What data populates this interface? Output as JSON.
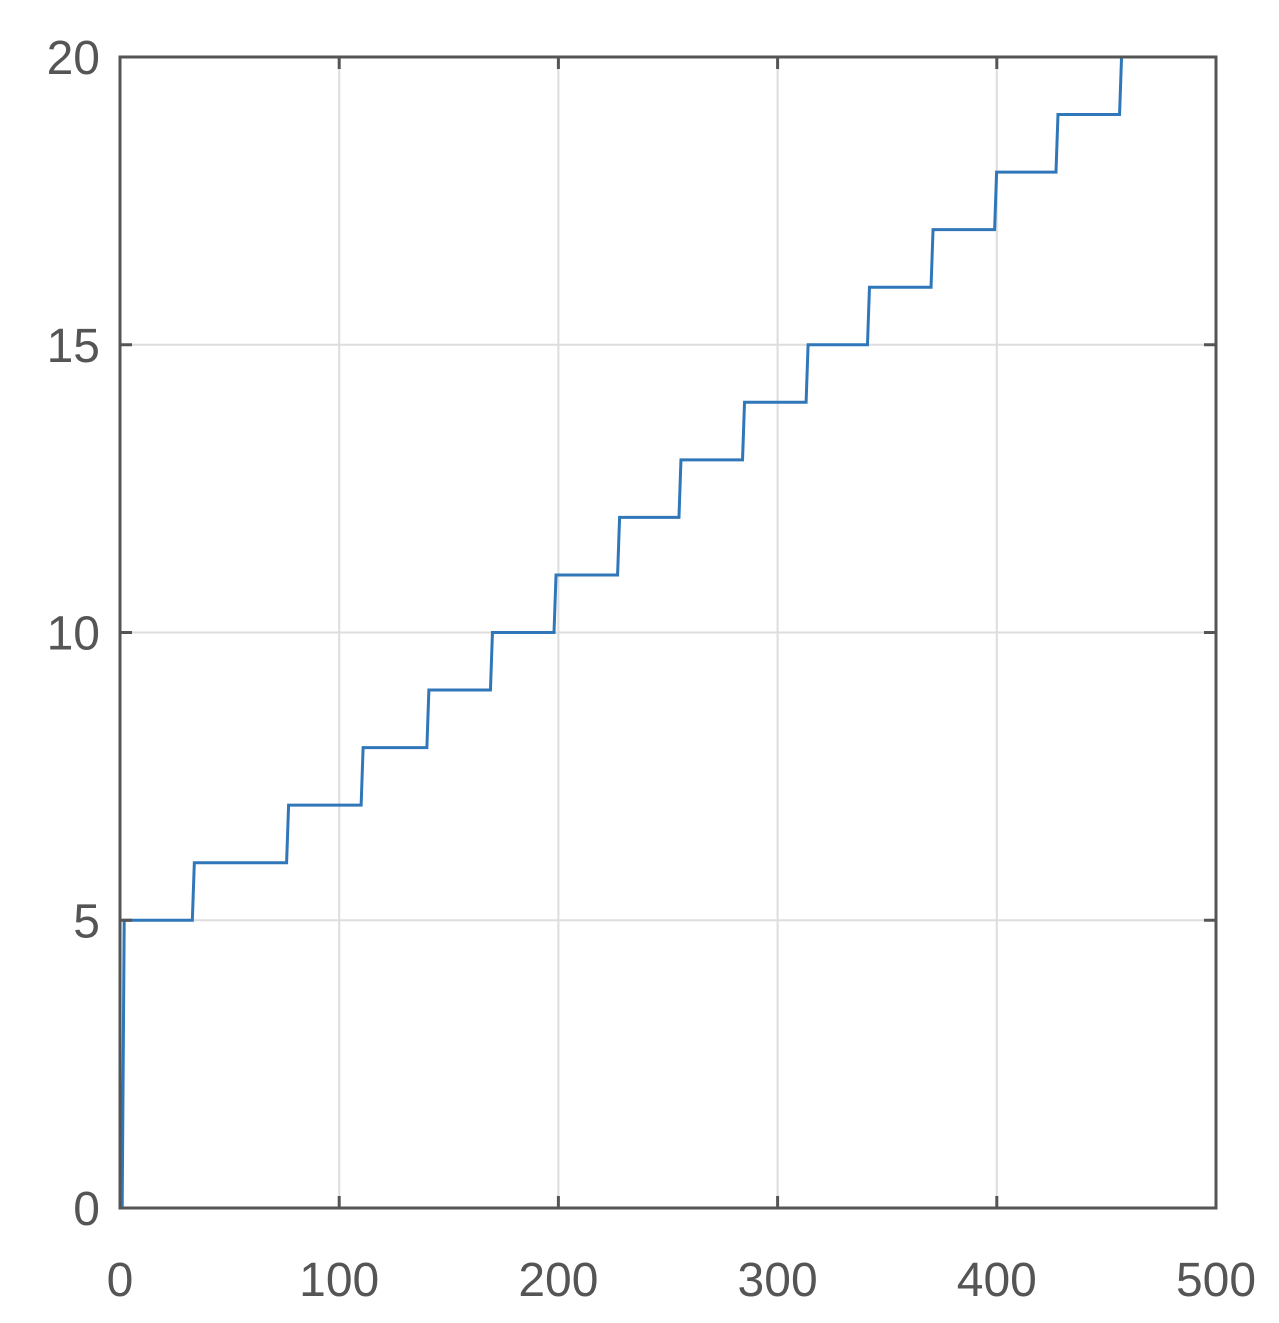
{
  "chart_data": {
    "type": "line",
    "title": "",
    "xlabel": "",
    "ylabel": "",
    "xlim": [
      0,
      500
    ],
    "ylim": [
      0,
      20
    ],
    "x_ticks": [
      0,
      100,
      200,
      300,
      400,
      500
    ],
    "y_ticks": [
      0,
      5,
      10,
      15,
      20
    ],
    "x_tick_labels": [
      "0",
      "100",
      "200",
      "300",
      "400",
      "500"
    ],
    "y_tick_labels": [
      "0",
      "5",
      "10",
      "15",
      "20"
    ],
    "grid": true,
    "legend": "none",
    "series": [
      {
        "color": "#3077b9",
        "step": "post",
        "x": [
          0,
          1,
          33,
          76,
          110,
          140,
          169,
          198,
          227,
          255,
          284,
          313,
          341,
          370,
          399,
          427,
          456,
          483
        ],
        "y": [
          0,
          5,
          6,
          7,
          8,
          9,
          10,
          11,
          12,
          13,
          14,
          15,
          16,
          17,
          18,
          19,
          20,
          20
        ]
      }
    ],
    "colors": {
      "axis": "#555555",
      "grid": "#dddddd",
      "tick_label": "#555555",
      "line": "#3077b9"
    }
  }
}
